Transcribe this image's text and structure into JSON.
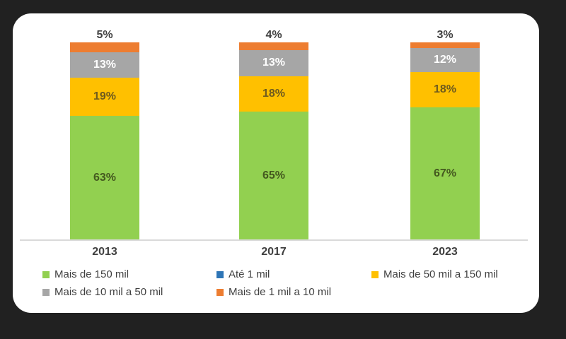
{
  "frame": {
    "background": "#212121",
    "card_background": "#FFFFFF"
  },
  "chart_data": {
    "type": "bar",
    "stacked": true,
    "title": "",
    "xlabel": "",
    "ylabel": "",
    "categories": [
      "2013",
      "2017",
      "2023"
    ],
    "series": [
      {
        "name": "Mais de 150 mil",
        "color": "#92D050",
        "values": [
          63,
          65,
          67
        ]
      },
      {
        "name": "Mais de 50 mil a 150 mil",
        "color": "#FFC000",
        "values": [
          19,
          18,
          18
        ]
      },
      {
        "name": "Mais de 10 mil a 50 mil",
        "color": "#A6A6A6",
        "values": [
          13,
          13,
          12
        ]
      },
      {
        "name": "Mais de 1 mil a 10 mil",
        "color": "#ED7D31",
        "values": [
          5,
          4,
          3
        ]
      },
      {
        "name": "Até 1 mil",
        "color": "#2E75B6",
        "values": [
          0,
          0,
          0
        ]
      }
    ],
    "value_suffix": "%",
    "ylim": [
      0,
      100
    ],
    "grid": false,
    "legend_position": "bottom"
  },
  "axis": {
    "line_color": "#D9D9D9"
  },
  "bars": [
    {
      "category": "2013",
      "outside_label": "5%",
      "segments": [
        {
          "name": "Mais de 1 mil a 10 mil",
          "value": 5,
          "color": "#ED7D31",
          "label": "",
          "label_color": ""
        },
        {
          "name": "Mais de 10 mil a 50 mil",
          "value": 13,
          "color": "#A6A6A6",
          "label": "13%",
          "label_color": "#FFFFFF"
        },
        {
          "name": "Mais de 50 mil a 150 mil",
          "value": 19,
          "color": "#FFC000",
          "label": "19%",
          "label_color": "#6E5A1E"
        },
        {
          "name": "Mais de 150 mil",
          "value": 63,
          "color": "#92D050",
          "label": "63%",
          "label_color": "#44591F"
        }
      ]
    },
    {
      "category": "2017",
      "outside_label": "4%",
      "segments": [
        {
          "name": "Mais de 1 mil a 10 mil",
          "value": 4,
          "color": "#ED7D31",
          "label": "",
          "label_color": ""
        },
        {
          "name": "Mais de 10 mil a 50 mil",
          "value": 13,
          "color": "#A6A6A6",
          "label": "13%",
          "label_color": "#FFFFFF"
        },
        {
          "name": "Mais de 50 mil a 150 mil",
          "value": 18,
          "color": "#FFC000",
          "label": "18%",
          "label_color": "#6E5A1E"
        },
        {
          "name": "Mais de 150 mil",
          "value": 65,
          "color": "#92D050",
          "label": "65%",
          "label_color": "#44591F"
        }
      ]
    },
    {
      "category": "2023",
      "outside_label": "3%",
      "segments": [
        {
          "name": "Mais de 1 mil a 10 mil",
          "value": 3,
          "color": "#ED7D31",
          "label": "",
          "label_color": ""
        },
        {
          "name": "Mais de 10 mil a 50 mil",
          "value": 12,
          "color": "#A6A6A6",
          "label": "12%",
          "label_color": "#FFFFFF"
        },
        {
          "name": "Mais de 50 mil a 150 mil",
          "value": 18,
          "color": "#FFC000",
          "label": "18%",
          "label_color": "#6E5A1E"
        },
        {
          "name": "Mais de 150 mil",
          "value": 67,
          "color": "#92D050",
          "label": "67%",
          "label_color": "#44591F"
        }
      ]
    }
  ],
  "legend": {
    "rows": [
      [
        {
          "label": "Mais de 150 mil",
          "color": "#92D050"
        },
        {
          "label": "Até 1 mil",
          "color": "#2E75B6"
        },
        {
          "label": "Mais de 50 mil a 150 mil",
          "color": "#FFC000"
        }
      ],
      [
        {
          "label": "Mais de 10 mil a 50 mil",
          "color": "#A6A6A6"
        },
        {
          "label": "Mais de 1 mil a 10 mil",
          "color": "#ED7D31"
        }
      ]
    ]
  }
}
